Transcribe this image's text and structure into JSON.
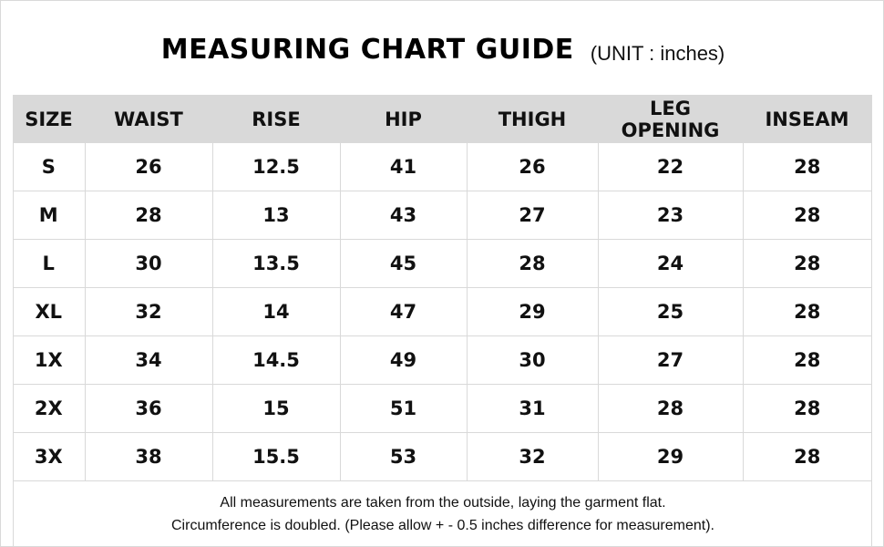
{
  "title": {
    "main": "MEASURING CHART GUIDE",
    "unit": "(UNIT : inches)"
  },
  "table": {
    "headers": [
      "SIZE",
      "WAIST",
      "RISE",
      "HIP",
      "THIGH",
      "LEG OPENING",
      "INSEAM"
    ],
    "rows": [
      [
        "S",
        "26",
        "12.5",
        "41",
        "26",
        "22",
        "28"
      ],
      [
        "M",
        "28",
        "13",
        "43",
        "27",
        "23",
        "28"
      ],
      [
        "L",
        "30",
        "13.5",
        "45",
        "28",
        "24",
        "28"
      ],
      [
        "XL",
        "32",
        "14",
        "47",
        "29",
        "25",
        "28"
      ],
      [
        "1X",
        "34",
        "14.5",
        "49",
        "30",
        "27",
        "28"
      ],
      [
        "2X",
        "36",
        "15",
        "51",
        "31",
        "28",
        "28"
      ],
      [
        "3X",
        "38",
        "15.5",
        "53",
        "32",
        "29",
        "28"
      ]
    ]
  },
  "footnote": {
    "line1": "All measurements are taken from the outside, laying the garment flat.",
    "line2": "Circumference is doubled. (Please allow + - 0.5 inches difference for measurement)."
  },
  "colors": {
    "header_bg": "#d9d9d9",
    "grid_line": "#d9d9d9",
    "text": "#111111"
  }
}
